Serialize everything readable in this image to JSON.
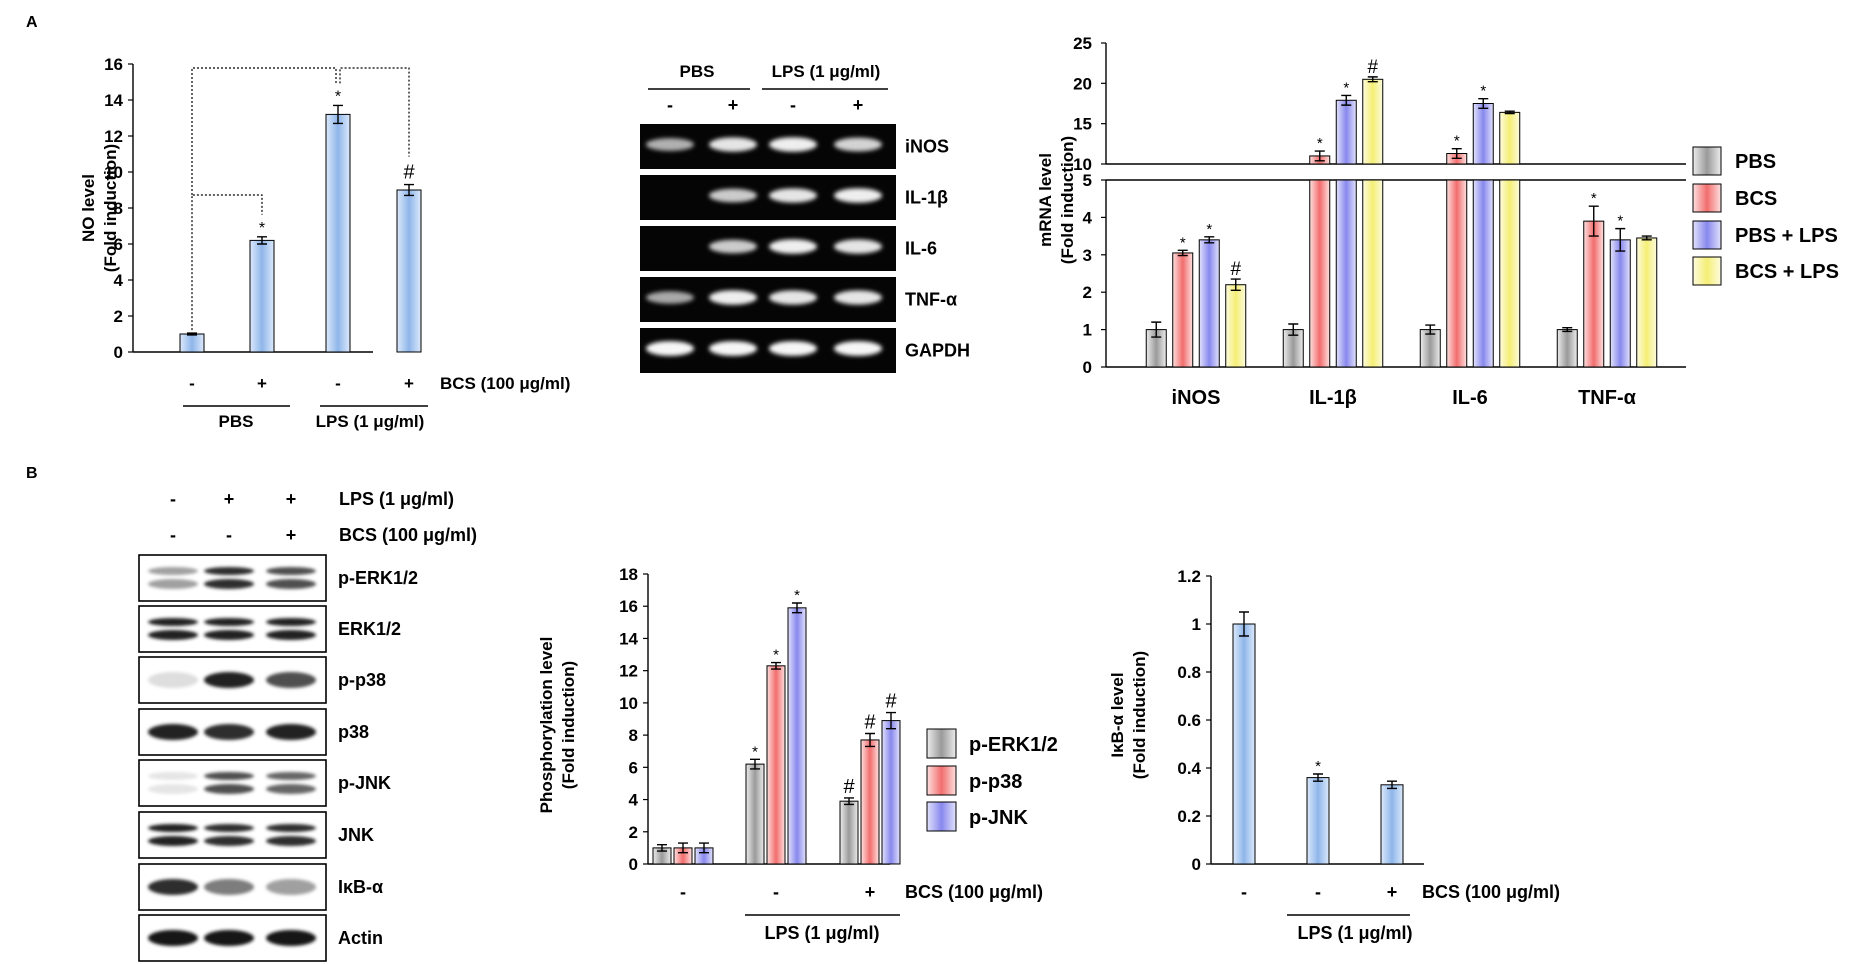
{
  "panels": {
    "A": "A",
    "B": "B"
  },
  "colors": {
    "pbs": "#a6a6a6",
    "bcs": "#f26d6d",
    "pbs_lps": "#8888ee",
    "bcs_lps": "#f5ef75",
    "erk": "#a6a6a6",
    "p38": "#f26d6d",
    "jnk": "#8888ee",
    "blue": "#8fb6ea"
  },
  "chart_data": [
    {
      "id": "no",
      "type": "bar",
      "ylabel": [
        "NO level",
        "(Fold induction)"
      ],
      "ylim": [
        0,
        16
      ],
      "yticks": [
        0,
        2,
        4,
        6,
        8,
        10,
        12,
        14,
        16
      ],
      "signs": [
        "-",
        "+",
        "-",
        "+"
      ],
      "values": [
        1.0,
        6.2,
        13.2,
        9.0
      ],
      "errors": [
        0.05,
        0.2,
        0.5,
        0.3
      ],
      "annotations": [
        "",
        "*",
        "*",
        "#"
      ],
      "treatment_label": "BCS (100 μg/ml)",
      "groups": [
        "PBS",
        "LPS (1 μg/ml)"
      ]
    },
    {
      "id": "mrna",
      "type": "bar",
      "ylabel": [
        "mRNA level",
        "(Fold induction)"
      ],
      "categories": [
        "iNOS",
        "IL-1β",
        "IL-6",
        "TNF-α"
      ],
      "lower_ylim": [
        0,
        5
      ],
      "lower_yticks": [
        0,
        1,
        2,
        3,
        4,
        5
      ],
      "upper_ylim": [
        10,
        25
      ],
      "upper_yticks": [
        10,
        15,
        20,
        25
      ],
      "series": [
        {
          "name": "PBS",
          "values": [
            1.0,
            1.0,
            1.0,
            1.0
          ],
          "errors": [
            0.2,
            0.15,
            0.12,
            0.05
          ],
          "annotations": [
            "",
            "",
            "",
            ""
          ]
        },
        {
          "name": "BCS",
          "values": [
            3.05,
            11.0,
            11.3,
            3.9
          ],
          "errors": [
            0.07,
            0.6,
            0.6,
            0.4
          ],
          "annotations": [
            "*",
            "*",
            "*",
            "*"
          ]
        },
        {
          "name": "PBS + LPS",
          "values": [
            3.4,
            17.9,
            17.5,
            3.4
          ],
          "errors": [
            0.08,
            0.6,
            0.6,
            0.3
          ],
          "annotations": [
            "*",
            "*",
            "*",
            "*"
          ]
        },
        {
          "name": "BCS + LPS",
          "values": [
            2.2,
            20.5,
            16.4,
            3.45
          ],
          "errors": [
            0.15,
            0.3,
            0.15,
            0.05
          ],
          "annotations": [
            "#",
            "#",
            "",
            ""
          ]
        }
      ]
    },
    {
      "id": "phos",
      "type": "bar",
      "ylabel": [
        "Phosphorylation level",
        "(Fold induction)"
      ],
      "ylim": [
        0,
        18
      ],
      "yticks": [
        0,
        2,
        4,
        6,
        8,
        10,
        12,
        14,
        16,
        18
      ],
      "signs": [
        "-",
        "-",
        "+"
      ],
      "treatment_label": "BCS (100 μg/ml)",
      "group_label": "LPS (1 μg/ml)",
      "series": [
        {
          "name": "p-ERK1/2",
          "values": [
            1.0,
            6.2,
            3.9
          ],
          "errors": [
            0.2,
            0.3,
            0.2
          ],
          "annotations": [
            "",
            "*",
            "#"
          ]
        },
        {
          "name": "p-p38",
          "values": [
            1.0,
            12.3,
            7.7
          ],
          "errors": [
            0.3,
            0.2,
            0.4
          ],
          "annotations": [
            "",
            "*",
            "#"
          ]
        },
        {
          "name": "p-JNK",
          "values": [
            1.0,
            15.9,
            8.9
          ],
          "errors": [
            0.3,
            0.3,
            0.5
          ],
          "annotations": [
            "",
            "*",
            "#"
          ]
        }
      ]
    },
    {
      "id": "ikb",
      "type": "bar",
      "ylabel": [
        "IκB-α level",
        "(Fold induction)"
      ],
      "ylim": [
        0,
        1.2
      ],
      "yticks": [
        0,
        0.2,
        0.4,
        0.6,
        0.8,
        1,
        1.2
      ],
      "signs": [
        "-",
        "-",
        "+"
      ],
      "values": [
        1.0,
        0.36,
        0.33
      ],
      "errors": [
        0.05,
        0.015,
        0.015
      ],
      "annotations": [
        "",
        "*",
        ""
      ],
      "treatment_label": "BCS (100 μg/ml)",
      "group_label": "LPS (1 μg/ml)"
    }
  ],
  "gel_A": {
    "header": [
      "PBS",
      "LPS (1 μg/ml)"
    ],
    "signs": [
      "-",
      "+",
      "-",
      "+"
    ],
    "rows": [
      {
        "label": "iNOS",
        "intensity": [
          0.55,
          0.85,
          0.9,
          0.75
        ]
      },
      {
        "label": "IL-1β",
        "intensity": [
          0.0,
          0.7,
          0.85,
          0.9
        ]
      },
      {
        "label": "IL-6",
        "intensity": [
          0.0,
          0.7,
          0.9,
          0.85
        ]
      },
      {
        "label": "TNF-α",
        "intensity": [
          0.5,
          0.9,
          0.85,
          0.85
        ]
      },
      {
        "label": "GAPDH",
        "intensity": [
          0.95,
          0.95,
          0.95,
          0.95
        ]
      }
    ]
  },
  "blot_B": {
    "lps_label": "LPS (1 μg/ml)",
    "bcs_label": "BCS (100 μg/ml)",
    "lps_signs": [
      "-",
      "+",
      "+"
    ],
    "bcs_signs": [
      "-",
      "-",
      "+"
    ],
    "rows": [
      {
        "label": "p-ERK1/2",
        "intensity": [
          0.35,
          0.85,
          0.7
        ],
        "double": true
      },
      {
        "label": "ERK1/2",
        "intensity": [
          0.9,
          0.9,
          0.9
        ],
        "double": true
      },
      {
        "label": "p-p38",
        "intensity": [
          0.08,
          0.9,
          0.7
        ],
        "double": false
      },
      {
        "label": "p38",
        "intensity": [
          0.9,
          0.85,
          0.9
        ],
        "double": false
      },
      {
        "label": "p-JNK",
        "intensity": [
          0.05,
          0.7,
          0.6
        ],
        "double": true
      },
      {
        "label": "JNK",
        "intensity": [
          0.9,
          0.85,
          0.85
        ],
        "double": true
      },
      {
        "label": "IκB-α",
        "intensity": [
          0.85,
          0.5,
          0.35
        ],
        "double": false
      },
      {
        "label": "Actin",
        "intensity": [
          0.95,
          0.95,
          0.95
        ],
        "double": false
      }
    ]
  }
}
